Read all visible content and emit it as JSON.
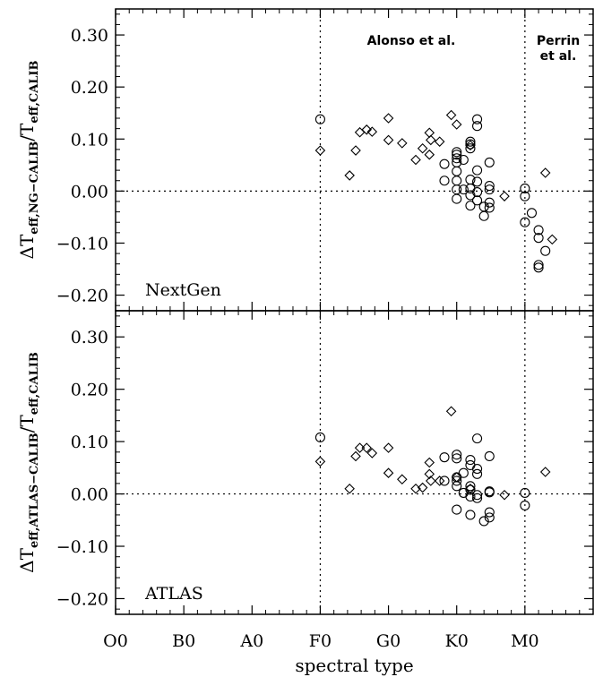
{
  "chart_data": {
    "type": "scatter",
    "x_categories": [
      "O0",
      "B0",
      "A0",
      "F0",
      "G0",
      "K0",
      "M0"
    ],
    "xlabel": "spectral type",
    "xlim": [
      0,
      7
    ],
    "x_units": "spectral subclass steps (O0=0, B0=1, A0=2, F0=3, G0=4, K0=5, M0=6)",
    "vlines": [
      3,
      6
    ],
    "region_labels": [
      {
        "text": "Alonso et al."
      },
      {
        "lines": [
          "Perrin",
          "et al."
        ]
      }
    ],
    "panels": [
      {
        "name": "NextGen",
        "ylabel_parts": {
          "delta": "Δ",
          "main": "T",
          "sub1": "eff,NG−CALIB",
          "slash": "/T",
          "sub2": "eff,CALIB"
        },
        "ylim": [
          -0.23,
          0.35
        ],
        "yticks": [
          "0.30",
          "0.20",
          "0.10",
          "0.00",
          "−0.10",
          "−0.20"
        ],
        "ytick_values": [
          0.3,
          0.2,
          0.1,
          0.0,
          -0.1,
          -0.2
        ],
        "series": [
          {
            "marker": "circle",
            "points": [
              [
                3.0,
                0.138
              ],
              [
                4.82,
                0.052
              ],
              [
                4.82,
                0.02
              ],
              [
                5.0,
                0.075
              ],
              [
                5.0,
                0.07
              ],
              [
                5.0,
                0.063
              ],
              [
                5.0,
                0.055
              ],
              [
                5.0,
                0.038
              ],
              [
                5.0,
                0.02
              ],
              [
                5.0,
                0.003
              ],
              [
                5.0,
                -0.015
              ],
              [
                5.1,
                0.06
              ],
              [
                5.1,
                0.003
              ],
              [
                5.2,
                0.095
              ],
              [
                5.2,
                0.09
              ],
              [
                5.2,
                0.082
              ],
              [
                5.2,
                0.022
              ],
              [
                5.2,
                0.005
              ],
              [
                5.2,
                -0.008
              ],
              [
                5.2,
                -0.028
              ],
              [
                5.3,
                0.138
              ],
              [
                5.3,
                0.125
              ],
              [
                5.3,
                0.04
              ],
              [
                5.3,
                0.018
              ],
              [
                5.3,
                -0.002
              ],
              [
                5.3,
                -0.018
              ],
              [
                5.4,
                -0.03
              ],
              [
                5.4,
                -0.048
              ],
              [
                5.48,
                0.055
              ],
              [
                5.48,
                0.01
              ],
              [
                5.48,
                0.003
              ],
              [
                5.48,
                -0.022
              ],
              [
                5.48,
                -0.032
              ],
              [
                6.0,
                0.005
              ],
              [
                6.0,
                -0.01
              ],
              [
                6.0,
                -0.06
              ],
              [
                6.1,
                -0.042
              ],
              [
                6.2,
                -0.075
              ],
              [
                6.2,
                -0.09
              ],
              [
                6.2,
                -0.142
              ],
              [
                6.2,
                -0.147
              ],
              [
                6.3,
                -0.115
              ]
            ]
          },
          {
            "marker": "diamond",
            "points": [
              [
                3.0,
                0.078
              ],
              [
                3.43,
                0.03
              ],
              [
                3.52,
                0.078
              ],
              [
                3.58,
                0.113
              ],
              [
                3.68,
                0.118
              ],
              [
                3.76,
                0.114
              ],
              [
                4.0,
                0.14
              ],
              [
                4.0,
                0.098
              ],
              [
                4.2,
                0.092
              ],
              [
                4.4,
                0.06
              ],
              [
                4.5,
                0.082
              ],
              [
                4.6,
                0.112
              ],
              [
                4.6,
                0.07
              ],
              [
                4.62,
                0.098
              ],
              [
                4.75,
                0.095
              ],
              [
                4.92,
                0.146
              ],
              [
                5.0,
                0.128
              ],
              [
                5.2,
                0.088
              ],
              [
                5.7,
                -0.01
              ],
              [
                6.3,
                0.035
              ],
              [
                6.4,
                -0.093
              ]
            ]
          }
        ]
      },
      {
        "name": "ATLAS",
        "ylabel_parts": {
          "delta": "Δ",
          "main": "T",
          "sub1": "eff,ATLAS−CALIB",
          "slash": "/T",
          "sub2": "eff,CALIB"
        },
        "ylim": [
          -0.23,
          0.35
        ],
        "yticks": [
          "0.30",
          "0.20",
          "0.10",
          "0.00",
          "−0.10",
          "−0.20"
        ],
        "ytick_values": [
          0.3,
          0.2,
          0.1,
          0.0,
          -0.1,
          -0.2
        ],
        "series": [
          {
            "marker": "circle",
            "points": [
              [
                3.0,
                0.108
              ],
              [
                4.82,
                0.07
              ],
              [
                4.82,
                0.025
              ],
              [
                5.0,
                0.075
              ],
              [
                5.0,
                0.068
              ],
              [
                5.0,
                0.032
              ],
              [
                5.0,
                0.025
              ],
              [
                5.0,
                0.015
              ],
              [
                5.0,
                -0.03
              ],
              [
                5.1,
                0.04
              ],
              [
                5.1,
                0.002
              ],
              [
                5.2,
                0.065
              ],
              [
                5.2,
                0.055
              ],
              [
                5.2,
                0.015
              ],
              [
                5.2,
                0.008
              ],
              [
                5.2,
                -0.005
              ],
              [
                5.2,
                -0.04
              ],
              [
                5.3,
                0.106
              ],
              [
                5.3,
                0.048
              ],
              [
                5.3,
                0.038
              ],
              [
                5.3,
                -0.002
              ],
              [
                5.3,
                -0.008
              ],
              [
                5.4,
                -0.052
              ],
              [
                5.48,
                0.072
              ],
              [
                5.48,
                0.005
              ],
              [
                5.48,
                0.003
              ],
              [
                5.48,
                -0.035
              ],
              [
                5.48,
                -0.045
              ],
              [
                6.0,
                0.002
              ],
              [
                6.0,
                -0.022
              ]
            ]
          },
          {
            "marker": "diamond",
            "points": [
              [
                3.0,
                0.062
              ],
              [
                3.43,
                0.01
              ],
              [
                3.52,
                0.072
              ],
              [
                3.58,
                0.088
              ],
              [
                3.68,
                0.088
              ],
              [
                3.76,
                0.078
              ],
              [
                4.0,
                0.088
              ],
              [
                4.0,
                0.04
              ],
              [
                4.2,
                0.028
              ],
              [
                4.4,
                0.01
              ],
              [
                4.5,
                0.012
              ],
              [
                4.6,
                0.06
              ],
              [
                4.6,
                0.038
              ],
              [
                4.62,
                0.025
              ],
              [
                4.75,
                0.025
              ],
              [
                4.92,
                0.158
              ],
              [
                5.0,
                0.032
              ],
              [
                5.2,
                0.01
              ],
              [
                5.7,
                -0.002
              ],
              [
                6.3,
                0.042
              ]
            ]
          }
        ]
      }
    ],
    "grid": false,
    "reference_lines": "dotted horizontal line at y=0 and dotted vertical lines at F0 and M0 in both panels"
  }
}
